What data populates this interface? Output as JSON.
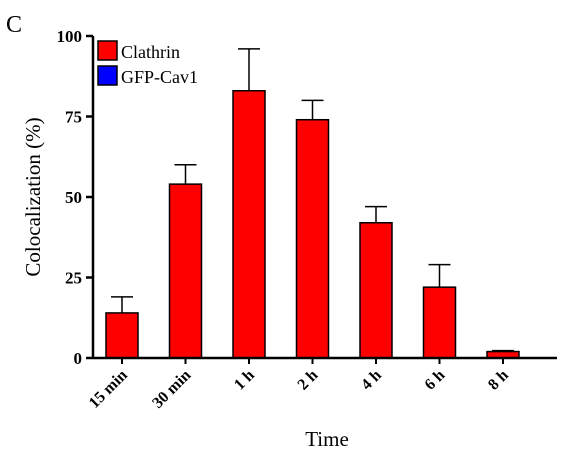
{
  "panel_label": "C",
  "colors": {
    "clathrin": "#ff0000",
    "gfp_cav1": "#0000ff",
    "axis": "#000000"
  },
  "chart_data": {
    "type": "bar",
    "categories": [
      "15 min",
      "30 min",
      "1 h",
      "2 h",
      "4 h",
      "6 h",
      "8 h"
    ],
    "series": [
      {
        "name": "Clathrin",
        "values": [
          14,
          54,
          83,
          74,
          42,
          22,
          2
        ],
        "error_upper": [
          19,
          60,
          96,
          80,
          47,
          29,
          2.3
        ]
      },
      {
        "name": "GFP-Cav1",
        "values": [
          0,
          0,
          0,
          0,
          0,
          0,
          0
        ]
      }
    ],
    "xlabel": "Time",
    "ylabel": "Colocalization (%)",
    "ylim": [
      0,
      100
    ],
    "yticks": [
      0,
      25,
      50,
      75,
      100
    ],
    "grid": false,
    "legend": "top-left",
    "error_bars": "upper"
  }
}
